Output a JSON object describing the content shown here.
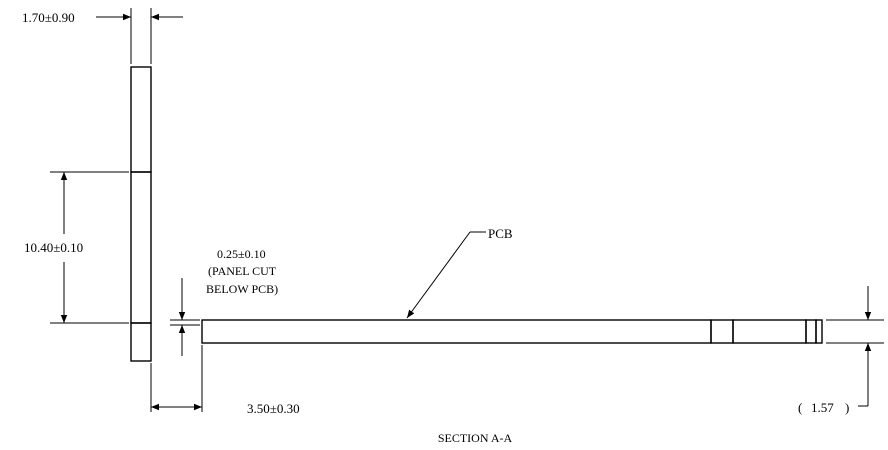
{
  "dimensions": {
    "panel_thickness": "1.70±0.90",
    "panel_height": "10.40±0.10",
    "panel_cut_value": "0.25±0.10",
    "panel_cut_note_1": "(PANEL CUT",
    "panel_cut_note_2": "BELOW PCB)",
    "offset": "3.50±0.30",
    "pcb_thickness": "1.57"
  },
  "labels": {
    "pcb": "PCB",
    "section": "SECTION A-A"
  },
  "colors": {
    "line": "#000000",
    "background": "#ffffff"
  }
}
